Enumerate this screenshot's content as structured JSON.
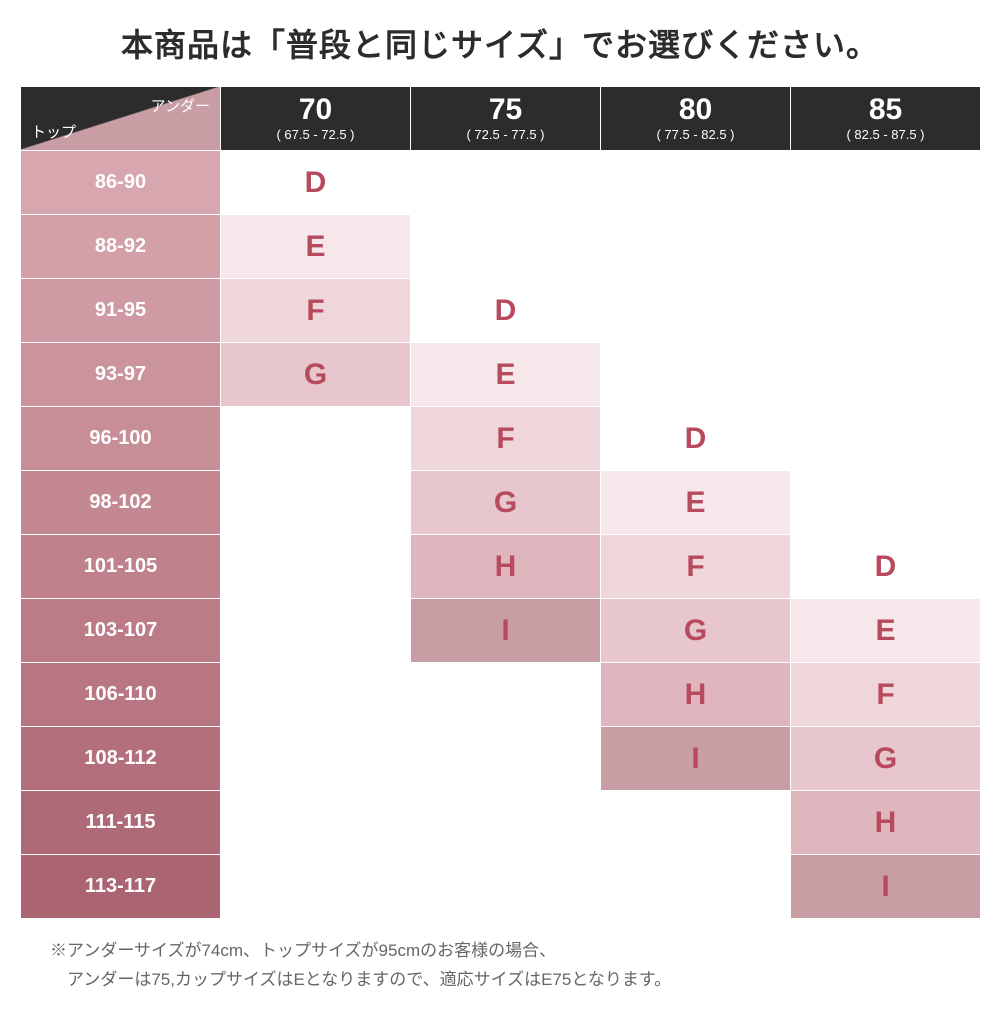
{
  "title": "本商品は「普段と同じサイズ」でお選びください。",
  "corner": {
    "under_label": "アンダー",
    "top_label": "トップ"
  },
  "columns": [
    {
      "size": "70",
      "range": "( 67.5 - 72.5 )"
    },
    {
      "size": "75",
      "range": "( 72.5 - 77.5 )"
    },
    {
      "size": "80",
      "range": "( 77.5 - 82.5 )"
    },
    {
      "size": "85",
      "range": "( 82.5 - 87.5 )"
    }
  ],
  "rows": [
    {
      "top": "86-90",
      "cells": [
        {
          "v": "D",
          "shade": 0
        },
        {
          "v": "",
          "shade": 0
        },
        {
          "v": "",
          "shade": 0
        },
        {
          "v": "",
          "shade": 0
        }
      ]
    },
    {
      "top": "88-92",
      "cells": [
        {
          "v": "E",
          "shade": 1
        },
        {
          "v": "",
          "shade": 0
        },
        {
          "v": "",
          "shade": 0
        },
        {
          "v": "",
          "shade": 0
        }
      ]
    },
    {
      "top": "91-95",
      "cells": [
        {
          "v": "F",
          "shade": 2
        },
        {
          "v": "D",
          "shade": 0
        },
        {
          "v": "",
          "shade": 0
        },
        {
          "v": "",
          "shade": 0
        }
      ]
    },
    {
      "top": "93-97",
      "cells": [
        {
          "v": "G",
          "shade": 3
        },
        {
          "v": "E",
          "shade": 1
        },
        {
          "v": "",
          "shade": 0
        },
        {
          "v": "",
          "shade": 0
        }
      ]
    },
    {
      "top": "96-100",
      "cells": [
        {
          "v": "",
          "shade": 0
        },
        {
          "v": "F",
          "shade": 2
        },
        {
          "v": "D",
          "shade": 0
        },
        {
          "v": "",
          "shade": 0
        }
      ]
    },
    {
      "top": "98-102",
      "cells": [
        {
          "v": "",
          "shade": 0
        },
        {
          "v": "G",
          "shade": 3
        },
        {
          "v": "E",
          "shade": 1
        },
        {
          "v": "",
          "shade": 0
        }
      ]
    },
    {
      "top": "101-105",
      "cells": [
        {
          "v": "",
          "shade": 0
        },
        {
          "v": "H",
          "shade": 4
        },
        {
          "v": "F",
          "shade": 2
        },
        {
          "v": "D",
          "shade": 0
        }
      ]
    },
    {
      "top": "103-107",
      "cells": [
        {
          "v": "",
          "shade": 0
        },
        {
          "v": "I",
          "shade": 5
        },
        {
          "v": "G",
          "shade": 3
        },
        {
          "v": "E",
          "shade": 1
        }
      ]
    },
    {
      "top": "106-110",
      "cells": [
        {
          "v": "",
          "shade": 0
        },
        {
          "v": "",
          "shade": 0
        },
        {
          "v": "H",
          "shade": 4
        },
        {
          "v": "F",
          "shade": 2
        }
      ]
    },
    {
      "top": "108-112",
      "cells": [
        {
          "v": "",
          "shade": 0
        },
        {
          "v": "",
          "shade": 0
        },
        {
          "v": "I",
          "shade": 5
        },
        {
          "v": "G",
          "shade": 3
        }
      ]
    },
    {
      "top": "111-115",
      "cells": [
        {
          "v": "",
          "shade": 0
        },
        {
          "v": "",
          "shade": 0
        },
        {
          "v": "",
          "shade": 0
        },
        {
          "v": "H",
          "shade": 4
        }
      ]
    },
    {
      "top": "113-117",
      "cells": [
        {
          "v": "",
          "shade": 0
        },
        {
          "v": "",
          "shade": 0
        },
        {
          "v": "",
          "shade": 0
        },
        {
          "v": "I",
          "shade": 5
        }
      ]
    }
  ],
  "row_head_colors": [
    "#d7a6ae",
    "#d3a0a8",
    "#cf9aa3",
    "#cb949d",
    "#c78e98",
    "#c38892",
    "#bf828d",
    "#bb7c87",
    "#b77682",
    "#b3707c",
    "#af6a77",
    "#ab6471"
  ],
  "cell_shade_colors": [
    "#ffffff",
    "#f5e7ea",
    "#eed6db",
    "#e7c6cd",
    "#e0b6be",
    "#c99da4"
  ],
  "cell_text_color": "#b84a5e",
  "footnote_line1": "※アンダーサイズが74cm、トップサイズが95cmのお客様の場合、",
  "footnote_line2": "　アンダーは75,カップサイズはEとなりますので、適応サイズはE75となります。"
}
